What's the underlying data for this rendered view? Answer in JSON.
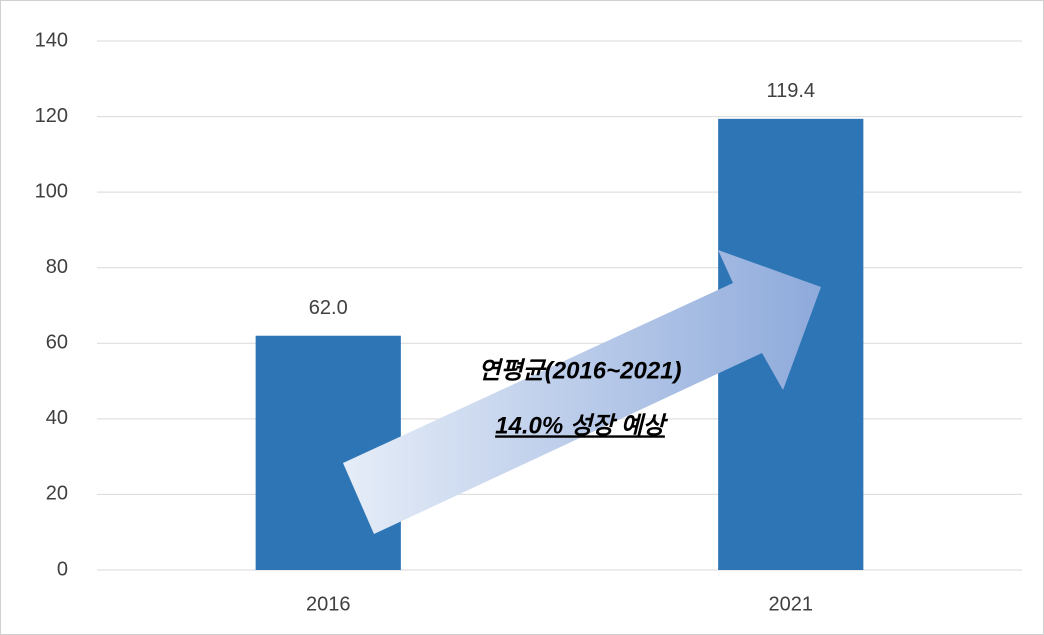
{
  "chart_data": {
    "type": "bar",
    "categories": [
      "2016",
      "2021"
    ],
    "values": [
      62.0,
      119.4
    ],
    "value_labels": [
      "62.0",
      "119.4"
    ],
    "color": "#2e75b6",
    "ylim": [
      0,
      140
    ],
    "yticks": [
      0,
      20,
      40,
      60,
      80,
      100,
      120,
      140
    ],
    "grid": true,
    "annotations": [
      "연평균(2016~2021)",
      "14.0% 성장 예상"
    ]
  }
}
